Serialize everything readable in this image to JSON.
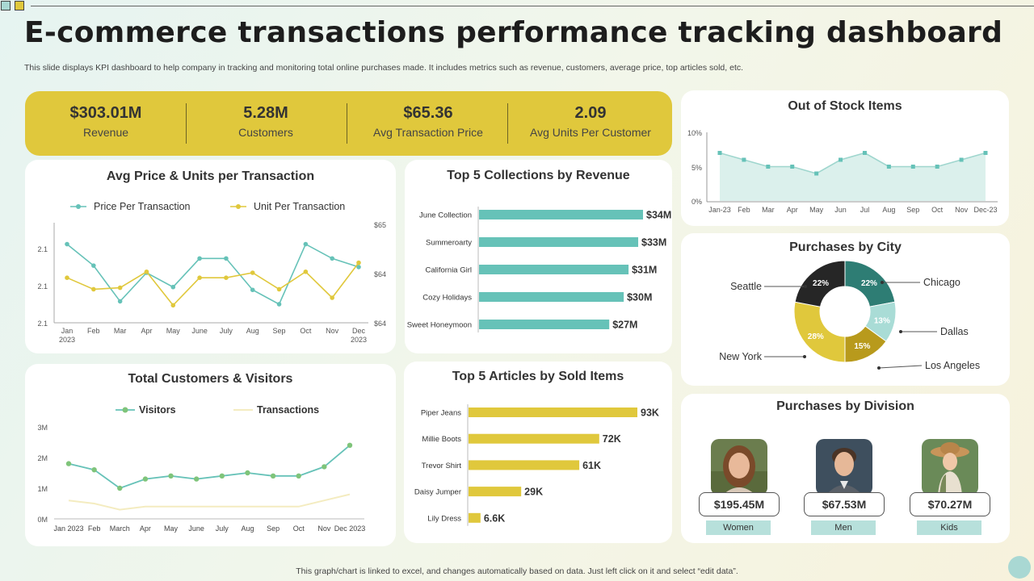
{
  "header": {
    "title": "E-commerce transactions performance tracking dashboard",
    "subtitle": "This slide displays KPI dashboard to help company in tracking and monitoring total online purchases made. It includes metrics such as revenue, customers, average price, top articles sold, etc.",
    "footer": "This graph/chart is linked to excel, and changes automatically based on data. Just left click on it and select “edit data”."
  },
  "kpis": [
    {
      "value": "$303.01M",
      "label": "Revenue"
    },
    {
      "value": "5.28M",
      "label": "Customers"
    },
    {
      "value": "$65.36",
      "label": "Avg Transaction Price"
    },
    {
      "value": "2.09",
      "label": "Avg Units Per Customer"
    }
  ],
  "colors": {
    "teal": "#66c2b8",
    "yellow": "#e0c83c",
    "dark": "#262626",
    "mustard": "#b89a1c",
    "light_teal": "#a9dcd6",
    "green": "#7fc47a",
    "cream": "#f4ecc0"
  },
  "chart_data": [
    {
      "id": "avg_price_units",
      "type": "line",
      "title": "Avg Price & Units per Transaction",
      "categories": [
        "Jan 2023",
        "Feb",
        "Mar",
        "Apr",
        "May",
        "June",
        "July",
        "Aug",
        "Sep",
        "Oct",
        "Nov",
        "Dec 2023"
      ],
      "x_tick_lines": [
        [
          "Jan",
          "2023"
        ],
        [
          "Feb"
        ],
        [
          "Mar"
        ],
        [
          "Apr"
        ],
        [
          "May"
        ],
        [
          "June"
        ],
        [
          "July"
        ],
        [
          "Aug"
        ],
        [
          "Sep"
        ],
        [
          "Oct"
        ],
        [
          "Nov"
        ],
        [
          "Dec",
          "2023"
        ]
      ],
      "series": [
        {
          "name": "Price Per Transaction",
          "axis": "left",
          "color": "#66c2b8",
          "values": [
            2.125,
            2.11,
            2.085,
            2.105,
            2.095,
            2.115,
            2.115,
            2.093,
            2.083,
            2.125,
            2.115,
            2.109
          ]
        },
        {
          "name": "Unit  Per Transaction",
          "axis": "right",
          "color": "#e0c83c",
          "values": [
            64.5,
            64.27,
            64.3,
            64.62,
            63.95,
            64.5,
            64.5,
            64.6,
            64.27,
            64.62,
            64.1,
            64.8
          ]
        }
      ],
      "y_left": {
        "ticks": [
          "2.1",
          "2.1",
          "2.1"
        ],
        "ylim": [
          2.07,
          2.14
        ]
      },
      "y_right": {
        "ticks": [
          "$65",
          "$64",
          "$64"
        ],
        "ylim": [
          63.6,
          65.6
        ]
      },
      "legend": "top"
    },
    {
      "id": "top_collections",
      "type": "bar",
      "orientation": "horizontal",
      "title": "Top 5 Collections by Revenue",
      "categories": [
        "June Collection",
        "Summeroarty",
        "California Girl",
        "Cozy Holidays",
        "Sweet Honeymoon"
      ],
      "values": [
        34,
        33,
        31,
        30,
        27
      ],
      "labels": [
        "$34M",
        "$33M",
        "$31M",
        "$30M",
        "$27M"
      ],
      "color": "#66c2b8"
    },
    {
      "id": "out_of_stock",
      "type": "area",
      "title": "Out of Stock Items",
      "categories": [
        "Jan-23",
        "Feb",
        "Mar",
        "Apr",
        "May",
        "Jun",
        "Jul",
        "Aug",
        "Sep",
        "Oct",
        "Nov",
        "Dec-23"
      ],
      "values": [
        7,
        6,
        5,
        5,
        4,
        6,
        7,
        5,
        5,
        5,
        6,
        7
      ],
      "y_ticks": [
        "10%",
        "5%",
        "0%"
      ],
      "ylim": [
        0,
        10
      ],
      "color": "#66c2b8"
    },
    {
      "id": "purchases_by_city",
      "type": "pie",
      "donut": true,
      "title": "Purchases by City",
      "slices": [
        {
          "label": "Chicago",
          "value": 22,
          "text": "22%",
          "color": "#2e7d74"
        },
        {
          "label": "Dallas",
          "value": 13,
          "text": "13%",
          "color": "#a9dcd6"
        },
        {
          "label": "Los Angeles",
          "value": 15,
          "text": "15%",
          "color": "#b89a1c"
        },
        {
          "label": "New York",
          "value": 28,
          "text": "28%",
          "color": "#e0c83c"
        },
        {
          "label": "Seattle",
          "value": 22,
          "text": "22%",
          "color": "#262626"
        }
      ]
    },
    {
      "id": "customers_visitors",
      "type": "line",
      "title": "Total Customers & Visitors",
      "categories": [
        "Jan 2023",
        "Feb",
        "March",
        "Apr",
        "May",
        "June",
        "July",
        "Aug",
        "Sep",
        "Oct",
        "Nov",
        "Dec 2023"
      ],
      "series": [
        {
          "name": "Visitors",
          "color": "#66c2b8",
          "marker_color": "#7fc47a",
          "values": [
            1.8,
            1.6,
            1.0,
            1.3,
            1.4,
            1.3,
            1.4,
            1.5,
            1.4,
            1.4,
            1.7,
            2.4
          ]
        },
        {
          "name": "Transactions",
          "color": "#f4ecc0",
          "values": [
            0.6,
            0.5,
            0.3,
            0.4,
            0.4,
            0.4,
            0.4,
            0.4,
            0.4,
            0.4,
            0.6,
            0.8
          ]
        }
      ],
      "y_ticks": [
        "3M",
        "2M",
        "1M",
        "0M"
      ],
      "ylim": [
        0,
        3
      ],
      "legend": "top"
    },
    {
      "id": "top_articles",
      "type": "bar",
      "orientation": "horizontal",
      "title": "Top 5 Articles  by Sold Items",
      "categories": [
        "Piper Jeans",
        "Millie Boots",
        "Trevor Shirt",
        "Daisy Jumper",
        "Lily Dress"
      ],
      "values": [
        93,
        72,
        61,
        29,
        6.6
      ],
      "labels": [
        "93K",
        "72K",
        "61K",
        "29K",
        "6.6K"
      ],
      "color": "#e0c83c"
    }
  ],
  "division": {
    "title": "Purchases by Division",
    "items": [
      {
        "amount": "$195.45M",
        "label": "Women",
        "icon": "woman-photo"
      },
      {
        "amount": "$67.53M",
        "label": "Men",
        "icon": "man-photo"
      },
      {
        "amount": "$70.27M",
        "label": "Kids",
        "icon": "kid-photo"
      }
    ]
  }
}
